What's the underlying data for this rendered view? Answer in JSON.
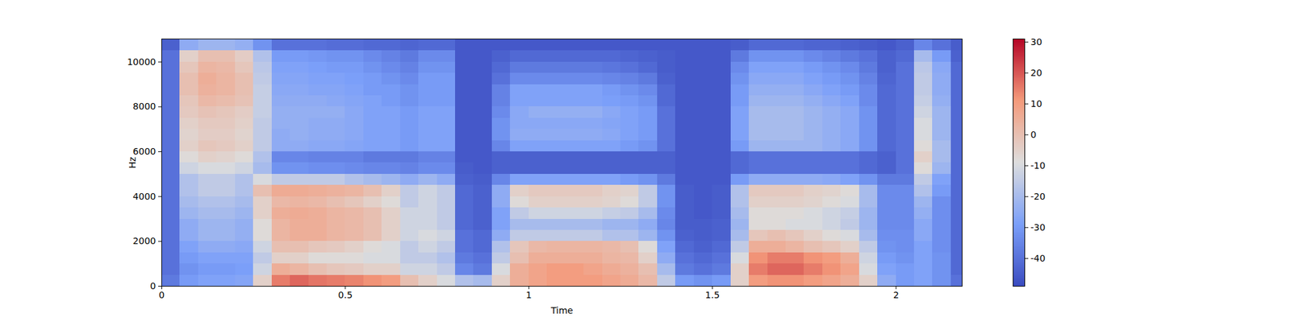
{
  "chart_data": {
    "type": "heatmap",
    "x_label": "Time",
    "y_label": "Hz",
    "xlim": [
      0,
      2.18
    ],
    "ylim": [
      0,
      11025
    ],
    "xticks": [
      0,
      0.5,
      1,
      1.5,
      2
    ],
    "yticks": [
      0,
      2000,
      4000,
      6000,
      8000,
      10000
    ],
    "time_bins": [
      0,
      0.05,
      0.1,
      0.15,
      0.2,
      0.25,
      0.3,
      0.35,
      0.4,
      0.45,
      0.5,
      0.55,
      0.6,
      0.65,
      0.7,
      0.75,
      0.8,
      0.85,
      0.9,
      0.95,
      1,
      1.05,
      1.1,
      1.15,
      1.2,
      1.25,
      1.3,
      1.35,
      1.4,
      1.45,
      1.5,
      1.55,
      1.6,
      1.65,
      1.7,
      1.75,
      1.8,
      1.85,
      1.9,
      1.95,
      2,
      2.05,
      2.1,
      2.15,
      2.2
    ],
    "freq_bins": [
      0,
      500,
      1000,
      1500,
      2000,
      2500,
      3000,
      3500,
      4000,
      4500,
      5000,
      5500,
      6000,
      6500,
      7000,
      7500,
      8000,
      8500,
      9000,
      9500,
      10000,
      10500,
      11000
    ],
    "cells": [
      [
        -38,
        -30,
        -28,
        -28,
        -27,
        -5,
        15,
        18,
        16,
        15,
        14,
        12,
        10,
        0,
        -5,
        -10,
        -18,
        -20,
        -5,
        5,
        8,
        10,
        10,
        10,
        8,
        6,
        2,
        -15,
        -30,
        -32,
        -30,
        -5,
        10,
        12,
        12,
        10,
        8,
        5,
        -5,
        -25,
        -30,
        -28,
        -32,
        -40
      ],
      [
        -40,
        -32,
        -30,
        -30,
        -29,
        -12,
        5,
        3,
        0,
        -2,
        -3,
        -5,
        -5,
        -12,
        -12,
        -15,
        -35,
        -38,
        -10,
        5,
        8,
        10,
        10,
        8,
        6,
        4,
        0,
        -20,
        -38,
        -40,
        -38,
        -5,
        15,
        18,
        18,
        15,
        12,
        8,
        -10,
        -28,
        -30,
        -28,
        -32,
        -42
      ],
      [
        -40,
        -30,
        -28,
        -28,
        -28,
        -15,
        -5,
        -5,
        -8,
        -8,
        -8,
        -10,
        -10,
        -15,
        -15,
        -18,
        -38,
        -40,
        -15,
        0,
        5,
        5,
        5,
        5,
        3,
        2,
        -5,
        -25,
        -40,
        -42,
        -40,
        -10,
        12,
        15,
        15,
        12,
        10,
        5,
        -12,
        -30,
        -32,
        -28,
        -32,
        -42
      ],
      [
        -40,
        -28,
        -25,
        -25,
        -26,
        -12,
        0,
        0,
        -2,
        -3,
        -5,
        -8,
        -10,
        -15,
        -12,
        -15,
        -40,
        -42,
        -18,
        -2,
        2,
        3,
        3,
        3,
        2,
        0,
        -8,
        -28,
        -42,
        -44,
        -42,
        -15,
        5,
        5,
        3,
        0,
        -2,
        -5,
        -15,
        -32,
        -33,
        -28,
        -33,
        -42
      ],
      [
        -40,
        -25,
        -22,
        -22,
        -24,
        -8,
        3,
        5,
        5,
        3,
        2,
        0,
        -5,
        -12,
        -10,
        -12,
        -40,
        -42,
        -25,
        -15,
        -15,
        -15,
        -15,
        -15,
        -18,
        -18,
        -22,
        -32,
        -44,
        -45,
        -44,
        -20,
        -2,
        0,
        -2,
        -5,
        -8,
        -10,
        -20,
        -33,
        -33,
        -26,
        -33,
        -42
      ],
      [
        -40,
        -25,
        -22,
        -22,
        -24,
        -8,
        3,
        5,
        5,
        3,
        2,
        0,
        -5,
        -12,
        -12,
        -15,
        -42,
        -44,
        -28,
        -20,
        -20,
        -20,
        -20,
        -20,
        -22,
        -22,
        -25,
        -35,
        -45,
        -45,
        -44,
        -22,
        -8,
        -8,
        -10,
        -10,
        -12,
        -15,
        -22,
        -34,
        -34,
        -26,
        -33,
        -42
      ],
      [
        -40,
        -22,
        -20,
        -20,
        -22,
        -5,
        5,
        6,
        5,
        3,
        2,
        0,
        -5,
        -12,
        -12,
        -15,
        -42,
        -44,
        -28,
        -15,
        -12,
        -12,
        -12,
        -12,
        -14,
        -15,
        -20,
        -34,
        -45,
        -46,
        -45,
        -20,
        -8,
        -8,
        -8,
        -10,
        -12,
        -14,
        -22,
        -34,
        -34,
        -24,
        -33,
        -42
      ],
      [
        -40,
        -20,
        -18,
        -18,
        -20,
        -5,
        2,
        3,
        2,
        0,
        -2,
        -5,
        -8,
        -15,
        -12,
        -15,
        -42,
        -44,
        -25,
        -8,
        -5,
        -5,
        -5,
        -5,
        -6,
        -8,
        -15,
        -32,
        -45,
        -46,
        -45,
        -18,
        -5,
        -5,
        -5,
        -6,
        -8,
        -10,
        -20,
        -34,
        -34,
        -22,
        -33,
        -42
      ],
      [
        -40,
        -18,
        -15,
        -15,
        -18,
        0,
        6,
        6,
        5,
        4,
        3,
        0,
        -5,
        -15,
        -12,
        -15,
        -42,
        -44,
        -25,
        -5,
        -3,
        -3,
        -3,
        -3,
        -5,
        -6,
        -15,
        -32,
        -45,
        -46,
        -45,
        -18,
        -3,
        -3,
        -3,
        -5,
        -6,
        -8,
        -20,
        -34,
        -34,
        -18,
        -30,
        -42
      ],
      [
        -40,
        -18,
        -15,
        -15,
        -18,
        -10,
        -15,
        -15,
        -15,
        -15,
        -18,
        -20,
        -22,
        -25,
        -22,
        -25,
        -44,
        -45,
        -35,
        -28,
        -28,
        -28,
        -28,
        -28,
        -28,
        -30,
        -32,
        -38,
        -46,
        -46,
        -46,
        -30,
        -25,
        -25,
        -25,
        -25,
        -26,
        -28,
        -32,
        -38,
        -38,
        -15,
        -28,
        -42
      ],
      [
        -40,
        -12,
        -10,
        -10,
        -12,
        -20,
        -32,
        -32,
        -33,
        -33,
        -34,
        -35,
        -35,
        -36,
        -34,
        -34,
        -45,
        -46,
        -44,
        -44,
        -44,
        -44,
        -44,
        -44,
        -44,
        -44,
        -44,
        -44,
        -46,
        -46,
        -46,
        -42,
        -40,
        -40,
        -40,
        -40,
        -40,
        -40,
        -42,
        -44,
        -40,
        -8,
        -22,
        -42
      ],
      [
        -40,
        -8,
        -5,
        -6,
        -8,
        -18,
        -35,
        -35,
        -36,
        -36,
        -36,
        -38,
        -38,
        -38,
        -36,
        -36,
        -46,
        -46,
        -44,
        -44,
        -44,
        -44,
        -44,
        -44,
        -44,
        -44,
        -44,
        -44,
        -46,
        -46,
        -46,
        -42,
        -40,
        -40,
        -40,
        -40,
        -40,
        -40,
        -42,
        -44,
        -40,
        -5,
        -20,
        -42
      ],
      [
        -40,
        -5,
        -2,
        -3,
        -5,
        -15,
        -25,
        -25,
        -26,
        -26,
        -27,
        -28,
        -28,
        -30,
        -28,
        -28,
        -46,
        -46,
        -35,
        -28,
        -28,
        -28,
        -28,
        -28,
        -28,
        -30,
        -32,
        -40,
        -46,
        -46,
        -46,
        -30,
        -22,
        -22,
        -22,
        -22,
        -24,
        -26,
        -32,
        -42,
        -40,
        -8,
        -20,
        -42
      ],
      [
        -40,
        -6,
        -4,
        -4,
        -6,
        -15,
        -25,
        -24,
        -25,
        -25,
        -26,
        -28,
        -28,
        -30,
        -28,
        -28,
        -46,
        -46,
        -32,
        -25,
        -25,
        -25,
        -25,
        -25,
        -26,
        -28,
        -30,
        -40,
        -46,
        -46,
        -46,
        -28,
        -20,
        -20,
        -20,
        -22,
        -24,
        -26,
        -32,
        -42,
        -40,
        -10,
        -22,
        -42
      ],
      [
        -40,
        -5,
        -3,
        -3,
        -5,
        -15,
        -24,
        -24,
        -25,
        -25,
        -26,
        -28,
        -28,
        -30,
        -28,
        -28,
        -46,
        -46,
        -32,
        -26,
        -26,
        -26,
        -26,
        -26,
        -27,
        -28,
        -30,
        -40,
        -46,
        -46,
        -46,
        -28,
        -20,
        -20,
        -20,
        -22,
        -24,
        -26,
        -32,
        -42,
        -40,
        -10,
        -22,
        -42
      ],
      [
        -40,
        -3,
        -1,
        -2,
        -4,
        -14,
        -24,
        -24,
        -24,
        -24,
        -26,
        -28,
        -28,
        -30,
        -28,
        -28,
        -46,
        -46,
        -34,
        -26,
        -24,
        -24,
        -24,
        -24,
        -26,
        -28,
        -30,
        -40,
        -46,
        -46,
        -46,
        -28,
        -20,
        -20,
        -20,
        -22,
        -24,
        -26,
        -32,
        -42,
        -40,
        -12,
        -22,
        -42
      ],
      [
        -40,
        -2,
        2,
        1,
        -1,
        -14,
        -25,
        -25,
        -25,
        -26,
        -27,
        -28,
        -30,
        -32,
        -30,
        -30,
        -46,
        -46,
        -36,
        -28,
        -28,
        -28,
        -28,
        -28,
        -29,
        -30,
        -32,
        -42,
        -46,
        -46,
        -46,
        -30,
        -22,
        -22,
        -22,
        -24,
        -26,
        -28,
        -34,
        -42,
        -40,
        -14,
        -24,
        -42
      ],
      [
        -40,
        0,
        4,
        3,
        0,
        -14,
        -26,
        -26,
        -27,
        -27,
        -28,
        -30,
        -30,
        -32,
        -30,
        -30,
        -46,
        -46,
        -36,
        -28,
        -28,
        -28,
        -28,
        -28,
        -30,
        -32,
        -34,
        -42,
        -46,
        -46,
        -46,
        -30,
        -24,
        -24,
        -24,
        -26,
        -28,
        -30,
        -34,
        -42,
        -40,
        -15,
        -25,
        -42
      ],
      [
        -40,
        0,
        5,
        3,
        0,
        -15,
        -27,
        -27,
        -28,
        -28,
        -29,
        -30,
        -32,
        -34,
        -30,
        -30,
        -46,
        -46,
        -40,
        -34,
        -34,
        -34,
        -34,
        -34,
        -35,
        -36,
        -38,
        -44,
        -46,
        -46,
        -46,
        -32,
        -26,
        -26,
        -26,
        -28,
        -30,
        -32,
        -36,
        -43,
        -40,
        -15,
        -25,
        -42
      ],
      [
        -40,
        -2,
        3,
        2,
        -2,
        -16,
        -28,
        -28,
        -29,
        -30,
        -30,
        -32,
        -34,
        -36,
        -32,
        -32,
        -46,
        -46,
        -42,
        -38,
        -38,
        -38,
        -38,
        -38,
        -39,
        -40,
        -42,
        -45,
        -46,
        -46,
        -46,
        -34,
        -28,
        -28,
        -28,
        -30,
        -32,
        -34,
        -38,
        -44,
        -40,
        -16,
        -26,
        -42
      ],
      [
        -40,
        -5,
        0,
        0,
        -4,
        -18,
        -30,
        -30,
        -31,
        -32,
        -32,
        -34,
        -36,
        -38,
        -34,
        -34,
        -46,
        -46,
        -44,
        -42,
        -42,
        -42,
        -42,
        -42,
        -42,
        -43,
        -44,
        -45,
        -46,
        -46,
        -46,
        -38,
        -32,
        -32,
        -32,
        -34,
        -36,
        -38,
        -40,
        -44,
        -42,
        -20,
        -30,
        -44
      ],
      [
        -44,
        -25,
        -22,
        -22,
        -24,
        -32,
        -40,
        -40,
        -40,
        -41,
        -41,
        -42,
        -42,
        -43,
        -42,
        -42,
        -46,
        -46,
        -46,
        -46,
        -46,
        -46,
        -46,
        -46,
        -46,
        -46,
        -46,
        -46,
        -46,
        -46,
        -46,
        -45,
        -42,
        -42,
        -42,
        -43,
        -43,
        -44,
        -45,
        -46,
        -44,
        -35,
        -40,
        -45
      ]
    ],
    "colorbar": {
      "lim": [
        -49,
        31
      ],
      "ticks": [
        -40,
        -30,
        -20,
        -10,
        0,
        10,
        20,
        30
      ]
    }
  }
}
